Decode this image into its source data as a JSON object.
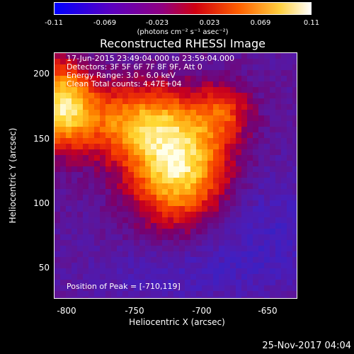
{
  "colorbar": {
    "ticks": [
      "-0.11",
      "-0.069",
      "-0.023",
      "0.023",
      "0.069",
      "0.11"
    ],
    "units": "(photons cm⁻² s⁻¹ asec⁻²)",
    "colors": [
      "#0000ff",
      "#6a00b0",
      "#a00060",
      "#e00000",
      "#ff8000",
      "#ffff80",
      "#ffffff"
    ]
  },
  "title": "Reconstructed RHESSI Image",
  "info": {
    "time": "17-Jun-2015 23:49:04.000 to 23:59:04.000",
    "detectors": "Detectors: 3F 5F 6F 7F 8F 9F, Att 0",
    "energy": "Energy Range: 3.0 - 6.0 keV",
    "clean": "Clean     Total counts: 4.47E+04"
  },
  "peak": "Position of Peak = [-710,119]",
  "axes": {
    "xlabel": "Heliocentric X (arcsec)",
    "ylabel": "Heliocentric Y (arcsec)",
    "xticks": [
      "-800",
      "-750",
      "-700",
      "-650"
    ],
    "yticks": [
      "200",
      "150",
      "100",
      "50"
    ]
  },
  "footer": "25-Nov-2017 04:04"
}
